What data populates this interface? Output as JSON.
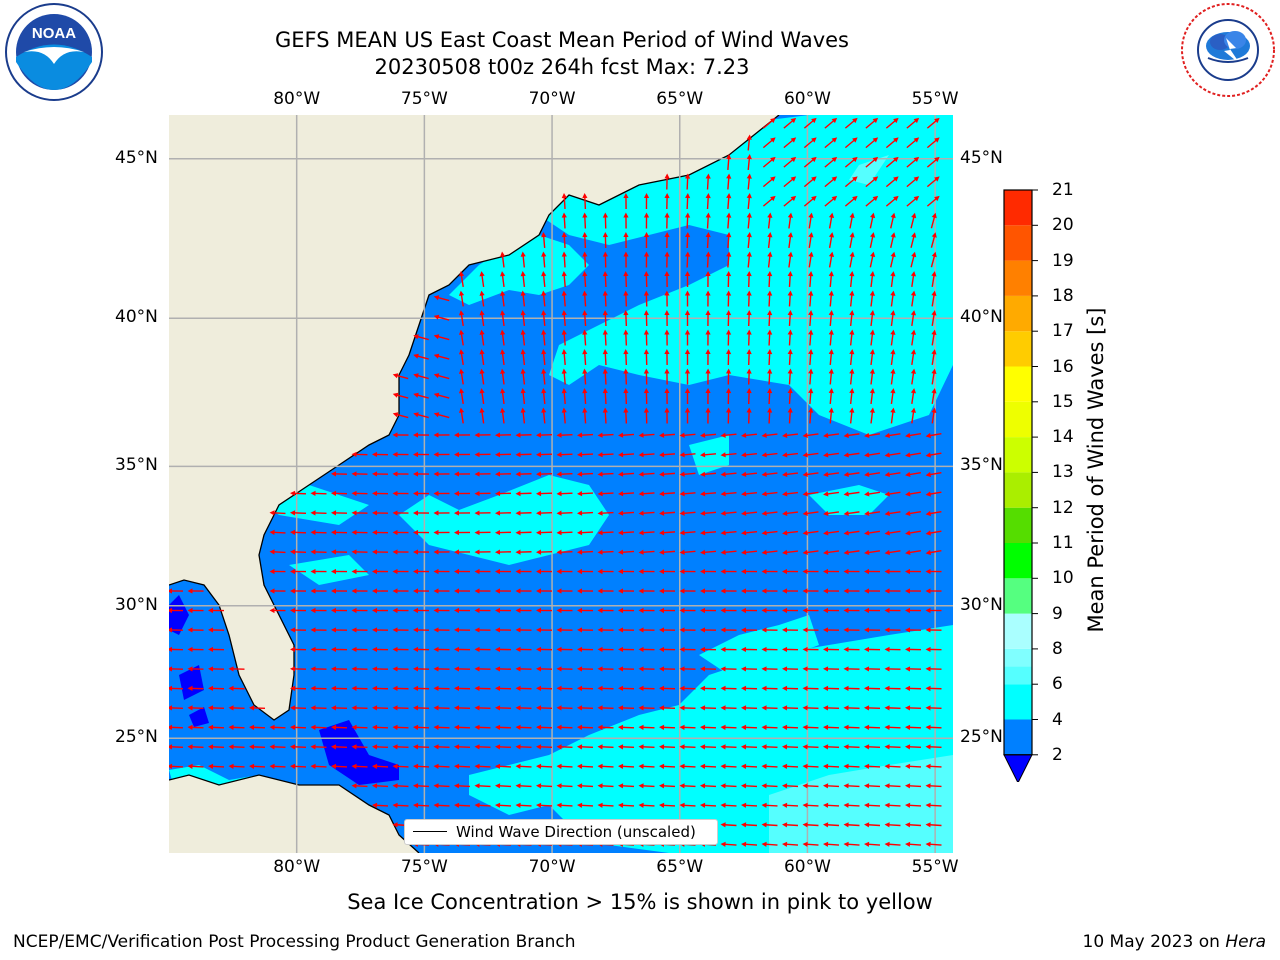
{
  "header": {
    "title_line1": "GEFS MEAN US East Coast Mean Period of Wind Waves",
    "title_line2": "20230508 t00z 264h fcst   Max: 7.23"
  },
  "logos": {
    "left": "noaa-logo",
    "left_text": "NOAA",
    "left_ring_text": "NATIONAL OCEANIC AND ATMOSPHERIC ADMINISTRATION · U.S. DEPARTMENT OF COMMERCE",
    "right": "nws-logo",
    "right_ring_text": "NATIONAL WEATHER SERVICE"
  },
  "map": {
    "lon_labels": [
      "80°W",
      "75°W",
      "70°W",
      "65°W",
      "60°W",
      "55°W"
    ],
    "lat_labels": [
      "45°N",
      "40°N",
      "35°N",
      "30°N",
      "25°N"
    ],
    "lon_values": [
      -80,
      -75,
      -70,
      -65,
      -60,
      -55
    ],
    "lat_values": [
      45,
      40,
      35,
      30,
      25
    ],
    "extent": {
      "lon": [
        -85,
        -54.3
      ],
      "lat": [
        20.5,
        46.3
      ]
    },
    "colors": {
      "land": "#efeddc",
      "ocean_2_4": "#0080ff",
      "ocean_4_6": "#00ffff",
      "ocean_0_2": "#0000ff",
      "ocean_6_8": "#55ffff",
      "arrow": "#ff0000",
      "grid": "#b0b0b0",
      "coast": "#000000"
    },
    "legend_label": "Wind Wave Direction (unscaled)",
    "arrow_symbol": "wind-direction-arrow"
  },
  "colorbar": {
    "label": "Mean Period of Wind Waves [s]",
    "ticks": [
      "21",
      "20",
      "19",
      "18",
      "17",
      "16",
      "15",
      "14",
      "13",
      "12",
      "11",
      "10",
      "9",
      "8",
      "6",
      "4",
      "2"
    ],
    "levels": [
      {
        "from": 2,
        "to": 4,
        "color": "#0080ff"
      },
      {
        "from": 4,
        "to": 6,
        "color": "#00ffff"
      },
      {
        "from": 6,
        "to": 7,
        "color": "#55ffff"
      },
      {
        "from": 7,
        "to": 8,
        "color": "#80ffff"
      },
      {
        "from": 8,
        "to": 9,
        "color": "#aaffff"
      },
      {
        "from": 9,
        "to": 10,
        "color": "#55ff80"
      },
      {
        "from": 10,
        "to": 11,
        "color": "#00ff00"
      },
      {
        "from": 11,
        "to": 12,
        "color": "#55dd00"
      },
      {
        "from": 12,
        "to": 13,
        "color": "#aaee00"
      },
      {
        "from": 13,
        "to": 14,
        "color": "#ccff00"
      },
      {
        "from": 14,
        "to": 15,
        "color": "#eeff00"
      },
      {
        "from": 15,
        "to": 16,
        "color": "#ffff00"
      },
      {
        "from": 16,
        "to": 17,
        "color": "#ffcc00"
      },
      {
        "from": 17,
        "to": 18,
        "color": "#ffaa00"
      },
      {
        "from": 18,
        "to": 19,
        "color": "#ff8000"
      },
      {
        "from": 19,
        "to": 20,
        "color": "#ff5500"
      },
      {
        "from": 20,
        "to": 21,
        "color": "#ff2a00"
      }
    ],
    "under_color": "#0000ff"
  },
  "footer": {
    "sea_ice_note": "Sea Ice Concentration > 15% is shown in pink to yellow",
    "credit": "NCEP/EMC/Verification Post Processing Product Generation Branch",
    "date_prefix": "10 May 2023 on ",
    "machine": "Hera"
  }
}
